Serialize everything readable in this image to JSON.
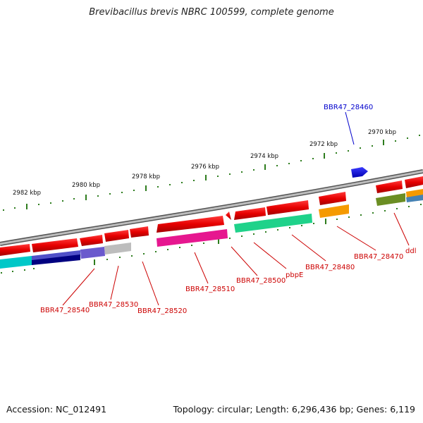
{
  "title": "Brevibacillus brevis NBRC 100599, complete genome",
  "footer": {
    "accession": "Accession: NC_012491",
    "summary": "Topology: circular; Length: 6,296,436 bp; Genes: 6,119"
  },
  "ticks": [
    {
      "label": "2982 kbp"
    },
    {
      "label": "2980 kbp"
    },
    {
      "label": "2978 kbp"
    },
    {
      "label": "2976 kbp"
    },
    {
      "label": "2974 kbp"
    },
    {
      "label": "2972 kbp"
    },
    {
      "label": "2970 kbp"
    }
  ],
  "gene_labels": [
    {
      "text": "BBR47_28460",
      "color": "#0000cc"
    },
    {
      "text": "BBR47_28470",
      "color": "#cc0000"
    },
    {
      "text": "ddl",
      "color": "#cc0000"
    },
    {
      "text": "BBR47_28480",
      "color": "#cc0000"
    },
    {
      "text": "pbpE",
      "color": "#cc0000"
    },
    {
      "text": "BBR47_28500",
      "color": "#cc0000"
    },
    {
      "text": "BBR47_28510",
      "color": "#cc0000"
    },
    {
      "text": "BBR47_28520",
      "color": "#cc0000"
    },
    {
      "text": "BBR47_28530",
      "color": "#cc0000"
    },
    {
      "text": "BBR47_28540",
      "color": "#cc0000"
    }
  ],
  "colors": {
    "gene": "#e60000",
    "rna_gene": "#0000ee",
    "backbone": "#8a8a8a",
    "tick": "#2e7d1e",
    "tick_label": "#111111"
  }
}
